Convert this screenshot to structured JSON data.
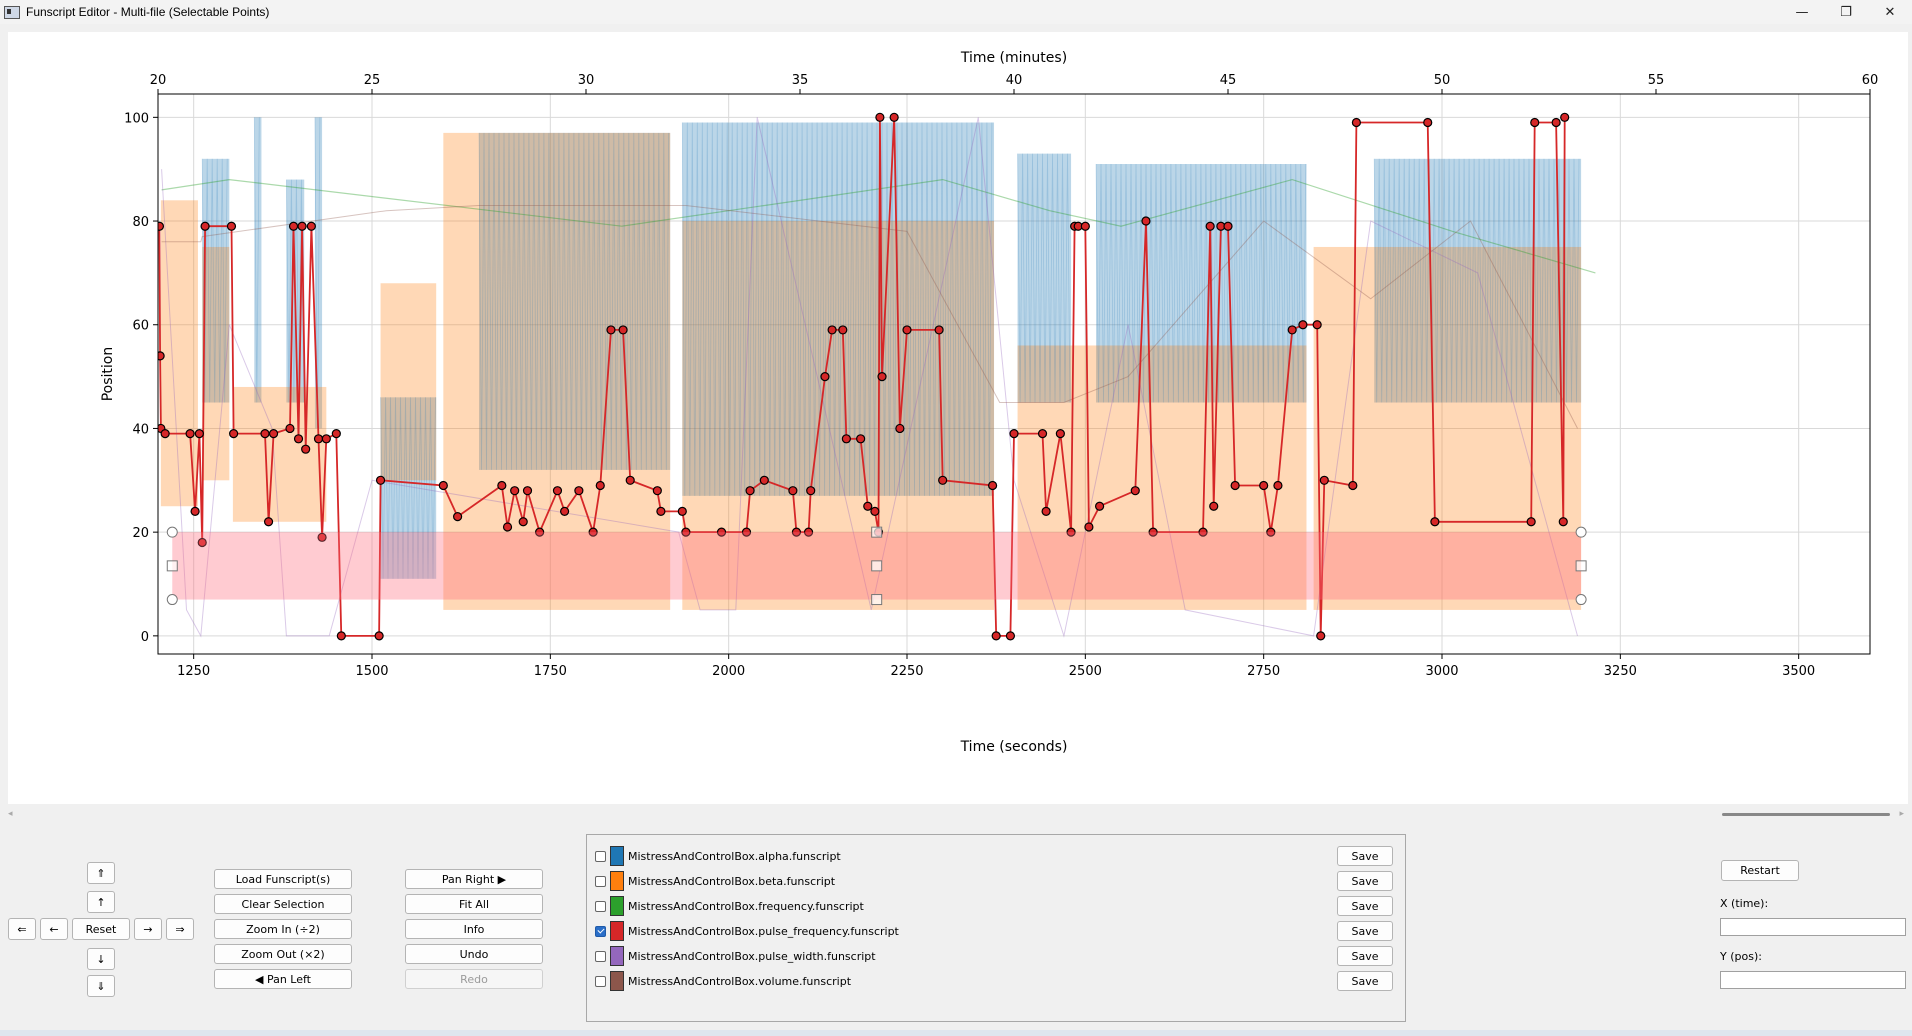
{
  "window": {
    "title": "Funscript Editor - Multi-file (Selectable Points)",
    "controls": {
      "minimize": "—",
      "maximize": "❐",
      "close": "✕"
    }
  },
  "chart_data": {
    "type": "line",
    "top_xlabel": "Time (minutes)",
    "xlabel": "Time (seconds)",
    "ylabel": "Position",
    "xlim": [
      1200,
      3600
    ],
    "ylim": [
      -3.5,
      104.5
    ],
    "x_ticks": [
      1250,
      1500,
      1750,
      2000,
      2250,
      2500,
      2750,
      3000,
      3250,
      3500
    ],
    "top_ticks": [
      20,
      25,
      30,
      35,
      40,
      45,
      50,
      55,
      60
    ],
    "y_ticks": [
      0,
      20,
      40,
      60,
      80,
      100
    ],
    "grid": true,
    "selection_box": {
      "x_range": [
        1220,
        3195
      ],
      "y_range": [
        7,
        20
      ]
    },
    "series": [
      {
        "name": "MistressAndControlBox.alpha.funscript",
        "color": "#1f77b4",
        "blocks": [
          {
            "x0": 1262,
            "x1": 1300,
            "y0": 45,
            "y1": 92
          },
          {
            "x0": 1335,
            "x1": 1345,
            "y0": 45,
            "y1": 100
          },
          {
            "x0": 1380,
            "x1": 1405,
            "y0": 45,
            "y1": 88
          },
          {
            "x0": 1420,
            "x1": 1430,
            "y0": 40,
            "y1": 100
          },
          {
            "x0": 1512,
            "x1": 1590,
            "y0": 11,
            "y1": 46
          },
          {
            "x0": 1650,
            "x1": 1918,
            "y0": 32,
            "y1": 97
          },
          {
            "x0": 1935,
            "x1": 2372,
            "y0": 27,
            "y1": 99
          },
          {
            "x0": 2405,
            "x1": 2480,
            "y0": 45,
            "y1": 93
          },
          {
            "x0": 2515,
            "x1": 2810,
            "y0": 45,
            "y1": 91
          },
          {
            "x0": 2905,
            "x1": 3195,
            "y0": 45,
            "y1": 92
          }
        ]
      },
      {
        "name": "MistressAndControlBox.beta.funscript",
        "color": "#ff7f0e",
        "blocks": [
          {
            "x0": 1204,
            "x1": 1256,
            "y0": 25,
            "y1": 84
          },
          {
            "x0": 1262,
            "x1": 1300,
            "y0": 30,
            "y1": 75
          },
          {
            "x0": 1305,
            "x1": 1436,
            "y0": 22,
            "y1": 48
          },
          {
            "x0": 1512,
            "x1": 1590,
            "y0": 30,
            "y1": 68
          },
          {
            "x0": 1600,
            "x1": 1918,
            "y0": 5,
            "y1": 97
          },
          {
            "x0": 1935,
            "x1": 2372,
            "y0": 5,
            "y1": 80
          },
          {
            "x0": 2405,
            "x1": 2810,
            "y0": 5,
            "y1": 56
          },
          {
            "x0": 2820,
            "x1": 3195,
            "y0": 5,
            "y1": 75
          }
        ]
      },
      {
        "name": "MistressAndControlBox.frequency.funscript",
        "color": "#2ca02c",
        "points": [
          [
            1205,
            86
          ],
          [
            1300,
            88
          ],
          [
            1850,
            79
          ],
          [
            2300,
            88
          ],
          [
            2450,
            82
          ],
          [
            2550,
            79
          ],
          [
            2790,
            88
          ],
          [
            3015,
            78
          ],
          [
            3215,
            70
          ]
        ]
      },
      {
        "name": "MistressAndControlBox.pulse_frequency.funscript",
        "color": "#d62728",
        "points": [
          [
            1202,
            79
          ],
          [
            1203,
            54
          ],
          [
            1204,
            40
          ],
          [
            1210,
            39
          ],
          [
            1245,
            39
          ],
          [
            1252,
            24
          ],
          [
            1258,
            39
          ],
          [
            1262,
            18
          ],
          [
            1266,
            79
          ],
          [
            1303,
            79
          ],
          [
            1306,
            39
          ],
          [
            1350,
            39
          ],
          [
            1355,
            22
          ],
          [
            1362,
            39
          ],
          [
            1385,
            40
          ],
          [
            1390,
            79
          ],
          [
            1397,
            38
          ],
          [
            1402,
            79
          ],
          [
            1407,
            36
          ],
          [
            1415,
            79
          ],
          [
            1425,
            38
          ],
          [
            1430,
            19
          ],
          [
            1436,
            38
          ],
          [
            1450,
            39
          ],
          [
            1457,
            0
          ],
          [
            1510,
            0
          ],
          [
            1512,
            30
          ],
          [
            1600,
            29
          ],
          [
            1620,
            23
          ],
          [
            1682,
            29
          ],
          [
            1690,
            21
          ],
          [
            1700,
            28
          ],
          [
            1712,
            22
          ],
          [
            1718,
            28
          ],
          [
            1735,
            20
          ],
          [
            1760,
            28
          ],
          [
            1770,
            24
          ],
          [
            1790,
            28
          ],
          [
            1810,
            20
          ],
          [
            1820,
            29
          ],
          [
            1835,
            59
          ],
          [
            1852,
            59
          ],
          [
            1862,
            30
          ],
          [
            1900,
            28
          ],
          [
            1905,
            24
          ],
          [
            1935,
            24
          ],
          [
            1940,
            20
          ],
          [
            1990,
            20
          ],
          [
            2025,
            20
          ],
          [
            2030,
            28
          ],
          [
            2050,
            30
          ],
          [
            2090,
            28
          ],
          [
            2095,
            20
          ],
          [
            2112,
            20
          ],
          [
            2115,
            28
          ],
          [
            2135,
            50
          ],
          [
            2145,
            59
          ],
          [
            2160,
            59
          ],
          [
            2165,
            38
          ],
          [
            2185,
            38
          ],
          [
            2195,
            25
          ],
          [
            2205,
            24
          ],
          [
            2210,
            20
          ],
          [
            2212,
            100
          ],
          [
            2215,
            50
          ],
          [
            2232,
            100
          ],
          [
            2240,
            40
          ],
          [
            2250,
            59
          ],
          [
            2295,
            59
          ],
          [
            2300,
            30
          ],
          [
            2370,
            29
          ],
          [
            2375,
            0
          ],
          [
            2395,
            0
          ],
          [
            2400,
            39
          ],
          [
            2440,
            39
          ],
          [
            2445,
            24
          ],
          [
            2465,
            39
          ],
          [
            2480,
            20
          ],
          [
            2485,
            79
          ],
          [
            2490,
            79
          ],
          [
            2500,
            79
          ],
          [
            2505,
            21
          ],
          [
            2520,
            25
          ],
          [
            2570,
            28
          ],
          [
            2585,
            80
          ],
          [
            2595,
            20
          ],
          [
            2665,
            20
          ],
          [
            2675,
            79
          ],
          [
            2680,
            25
          ],
          [
            2690,
            79
          ],
          [
            2700,
            79
          ],
          [
            2710,
            29
          ],
          [
            2750,
            29
          ],
          [
            2760,
            20
          ],
          [
            2770,
            29
          ],
          [
            2790,
            59
          ],
          [
            2805,
            60
          ],
          [
            2825,
            60
          ],
          [
            2830,
            0
          ],
          [
            2835,
            30
          ],
          [
            2875,
            29
          ],
          [
            2880,
            99
          ],
          [
            2980,
            99
          ],
          [
            2990,
            22
          ],
          [
            3125,
            22
          ],
          [
            3130,
            99
          ],
          [
            3160,
            99
          ],
          [
            3170,
            22
          ],
          [
            3172,
            100
          ]
        ]
      },
      {
        "name": "MistressAndControlBox.pulse_width.funscript",
        "color": "#9467bd",
        "points": [
          [
            1205,
            90
          ],
          [
            1240,
            5
          ],
          [
            1260,
            0
          ],
          [
            1300,
            60
          ],
          [
            1360,
            40
          ],
          [
            1380,
            0
          ],
          [
            1440,
            0
          ],
          [
            1500,
            30
          ],
          [
            1930,
            20
          ],
          [
            1960,
            5
          ],
          [
            2010,
            5
          ],
          [
            2040,
            100
          ],
          [
            2200,
            5
          ],
          [
            2350,
            100
          ],
          [
            2400,
            30
          ],
          [
            2470,
            0
          ],
          [
            2560,
            60
          ],
          [
            2640,
            5
          ],
          [
            2820,
            0
          ],
          [
            2900,
            80
          ],
          [
            3050,
            70
          ],
          [
            3190,
            0
          ]
        ]
      },
      {
        "name": "MistressAndControlBox.volume.funscript",
        "color": "#8c564b",
        "points": [
          [
            1205,
            76
          ],
          [
            1260,
            76
          ],
          [
            1262,
            77
          ],
          [
            1520,
            82
          ],
          [
            1650,
            83
          ],
          [
            1940,
            83
          ],
          [
            2250,
            78
          ],
          [
            2380,
            45
          ],
          [
            2470,
            45
          ],
          [
            2560,
            50
          ],
          [
            2750,
            80
          ],
          [
            2900,
            65
          ],
          [
            3040,
            80
          ],
          [
            3190,
            40
          ]
        ]
      }
    ]
  },
  "nav": {
    "up_double": "⇑",
    "up": "↑",
    "left_double": "⇐",
    "left": "←",
    "reset": "Reset",
    "right": "→",
    "right_double": "⇒",
    "down": "↓",
    "down_double": "⇓"
  },
  "toolbar": {
    "load": "Load Funscript(s)",
    "clear_selection": "Clear Selection",
    "zoom_in": "Zoom In (÷2)",
    "zoom_out": "Zoom Out (×2)",
    "pan_left": "◀ Pan Left",
    "pan_right": "Pan Right ▶",
    "fit_all": "Fit All",
    "info": "Info",
    "undo": "Undo",
    "redo": "Redo"
  },
  "files": [
    {
      "name": "MistressAndControlBox.alpha.funscript",
      "color": "#1f77b4",
      "checked": false,
      "save": "Save"
    },
    {
      "name": "MistressAndControlBox.beta.funscript",
      "color": "#ff7f0e",
      "checked": false,
      "save": "Save"
    },
    {
      "name": "MistressAndControlBox.frequency.funscript",
      "color": "#2ca02c",
      "checked": false,
      "save": "Save"
    },
    {
      "name": "MistressAndControlBox.pulse_frequency.funscript",
      "color": "#d62728",
      "checked": true,
      "save": "Save"
    },
    {
      "name": "MistressAndControlBox.pulse_width.funscript",
      "color": "#9467bd",
      "checked": false,
      "save": "Save"
    },
    {
      "name": "MistressAndControlBox.volume.funscript",
      "color": "#8c564b",
      "checked": false,
      "save": "Save"
    }
  ],
  "right_panel": {
    "restart": "Restart",
    "x_label": "X (time):",
    "y_label": "Y (pos):",
    "x_value": "",
    "y_value": ""
  }
}
